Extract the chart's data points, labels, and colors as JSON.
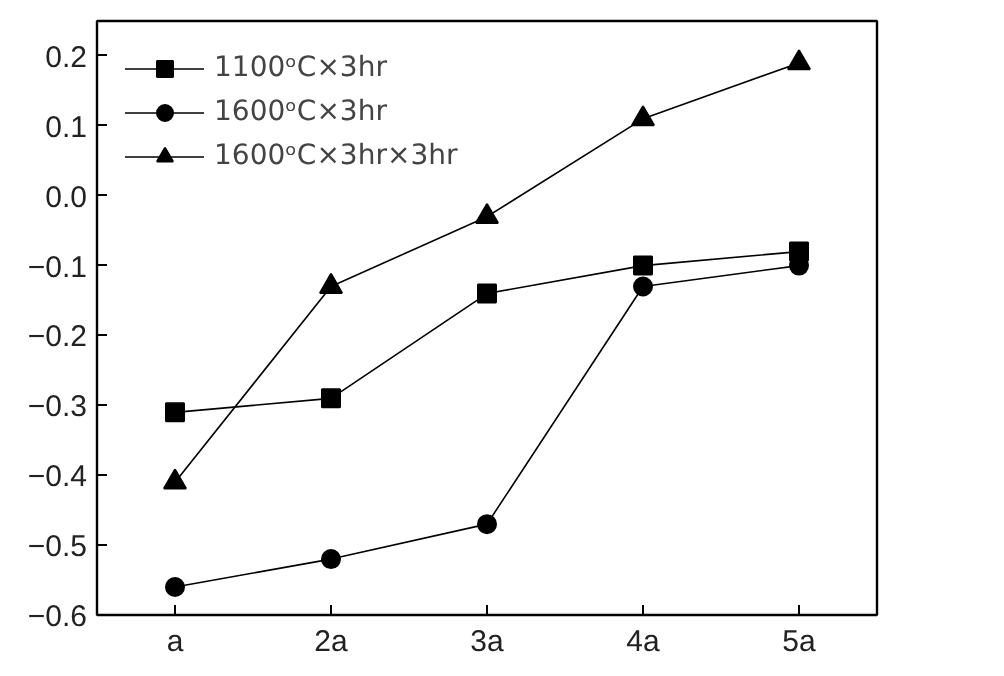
{
  "chart_data": {
    "type": "line",
    "categories": [
      "a",
      "2a",
      "3a",
      "4a",
      "5a"
    ],
    "ylim": [
      -0.6,
      0.25
    ],
    "yticks": [
      -0.6,
      -0.5,
      -0.4,
      -0.3,
      -0.2,
      -0.1,
      {
        "value": 0,
        "label": "0.0"
      },
      0.1,
      0.2
    ],
    "grid": false,
    "legend": "top left",
    "line_style": "solid",
    "series": [
      {
        "name": "1100ᵒC×3hr",
        "color": "#000000",
        "marker": "square",
        "values": [
          -0.31,
          -0.29,
          -0.14,
          -0.1,
          -0.08
        ]
      },
      {
        "name": "1600ᵒC×3hr",
        "color": "#000000",
        "marker": "circle",
        "values": [
          -0.56,
          -0.52,
          -0.47,
          -0.13,
          -0.1
        ]
      },
      {
        "name": "1600ᵒC×3hr×3hr",
        "color": "#000000",
        "marker": "triangle",
        "values": [
          -0.41,
          -0.13,
          -0.03,
          0.11,
          0.19
        ]
      }
    ]
  }
}
